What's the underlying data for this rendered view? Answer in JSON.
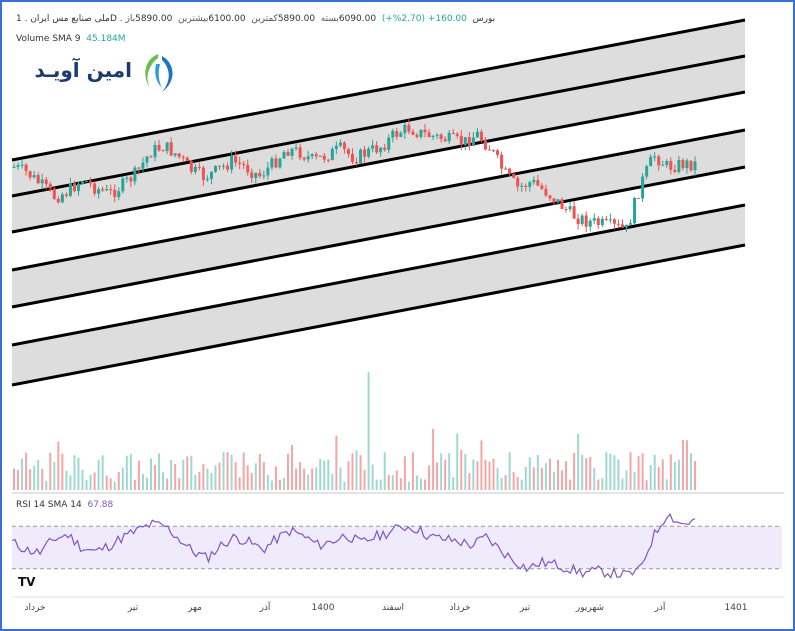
{
  "header": {
    "symbol_line": "ملی صنایع مس ایران . 1D . بورس",
    "change": "160.00+ (2.70%+)",
    "stats": [
      {
        "label": "باز",
        "value": "5890.00"
      },
      {
        "label": "بیشترین",
        "value": "6100.00"
      },
      {
        "label": "کمترین",
        "value": "5890.00"
      },
      {
        "label": "بسته",
        "value": "6090.00"
      }
    ],
    "volume_label": "Volume SMA 9",
    "volume_value": "45.184M",
    "rsi_label": "RSI 14 SMA 14",
    "rsi_value": "67.88"
  },
  "logo": {
    "text": "امین آویـد"
  },
  "colors": {
    "up": "#26a69a",
    "down": "#ef5350",
    "channel_fill": "#d9d9d9",
    "channel_line": "#000000",
    "rsi_line": "#7e57c2",
    "rsi_band": "#f0ebfa",
    "frame": "#3b6fd8"
  },
  "chart_data": {
    "type": "candlestick",
    "x_ticks": [
      "خرداد",
      "تیر",
      "مهر",
      "آذر",
      "1400",
      "اسفند",
      "خرداد",
      "تیر",
      "شهریور",
      "آذر",
      "1401"
    ],
    "price_series": [
      {
        "t": 0,
        "c": 0.62
      },
      {
        "t": 0.02,
        "c": 0.58
      },
      {
        "t": 0.04,
        "c": 0.5
      },
      {
        "t": 0.06,
        "c": 0.42
      },
      {
        "t": 0.08,
        "c": 0.46
      },
      {
        "t": 0.1,
        "c": 0.54
      },
      {
        "t": 0.12,
        "c": 0.48
      },
      {
        "t": 0.14,
        "c": 0.44
      },
      {
        "t": 0.16,
        "c": 0.5
      },
      {
        "t": 0.18,
        "c": 0.58
      },
      {
        "t": 0.2,
        "c": 0.72
      },
      {
        "t": 0.22,
        "c": 0.76
      },
      {
        "t": 0.24,
        "c": 0.7
      },
      {
        "t": 0.26,
        "c": 0.6
      },
      {
        "t": 0.28,
        "c": 0.55
      },
      {
        "t": 0.3,
        "c": 0.6
      },
      {
        "t": 0.32,
        "c": 0.66
      },
      {
        "t": 0.34,
        "c": 0.62
      },
      {
        "t": 0.36,
        "c": 0.56
      },
      {
        "t": 0.38,
        "c": 0.64
      },
      {
        "t": 0.4,
        "c": 0.74
      },
      {
        "t": 0.42,
        "c": 0.72
      },
      {
        "t": 0.44,
        "c": 0.66
      },
      {
        "t": 0.46,
        "c": 0.7
      },
      {
        "t": 0.48,
        "c": 0.74
      },
      {
        "t": 0.5,
        "c": 0.68
      },
      {
        "t": 0.52,
        "c": 0.72
      },
      {
        "t": 0.54,
        "c": 0.76
      },
      {
        "t": 0.56,
        "c": 0.84
      },
      {
        "t": 0.58,
        "c": 0.88
      },
      {
        "t": 0.6,
        "c": 0.84
      },
      {
        "t": 0.62,
        "c": 0.82
      },
      {
        "t": 0.64,
        "c": 0.8
      },
      {
        "t": 0.66,
        "c": 0.78
      },
      {
        "t": 0.68,
        "c": 0.84
      },
      {
        "t": 0.7,
        "c": 0.74
      },
      {
        "t": 0.72,
        "c": 0.58
      },
      {
        "t": 0.74,
        "c": 0.48
      },
      {
        "t": 0.76,
        "c": 0.52
      },
      {
        "t": 0.78,
        "c": 0.46
      },
      {
        "t": 0.8,
        "c": 0.38
      },
      {
        "t": 0.82,
        "c": 0.3
      },
      {
        "t": 0.84,
        "c": 0.26
      },
      {
        "t": 0.86,
        "c": 0.24
      },
      {
        "t": 0.88,
        "c": 0.22
      },
      {
        "t": 0.9,
        "c": 0.2
      },
      {
        "t": 0.92,
        "c": 0.5
      },
      {
        "t": 0.94,
        "c": 0.7
      },
      {
        "t": 0.96,
        "c": 0.62
      },
      {
        "t": 0.98,
        "c": 0.64
      }
    ],
    "rsi_levels": [
      70,
      30
    ],
    "rsi_series": [
      55,
      48,
      45,
      58,
      62,
      50,
      46,
      52,
      60,
      66,
      72,
      70,
      58,
      46,
      40,
      52,
      60,
      55,
      48,
      58,
      66,
      60,
      52,
      56,
      62,
      54,
      60,
      64,
      70,
      68,
      60,
      58,
      56,
      52,
      60,
      48,
      38,
      30,
      36,
      34,
      30,
      26,
      28,
      26,
      24,
      28,
      60,
      82,
      72,
      75
    ]
  }
}
